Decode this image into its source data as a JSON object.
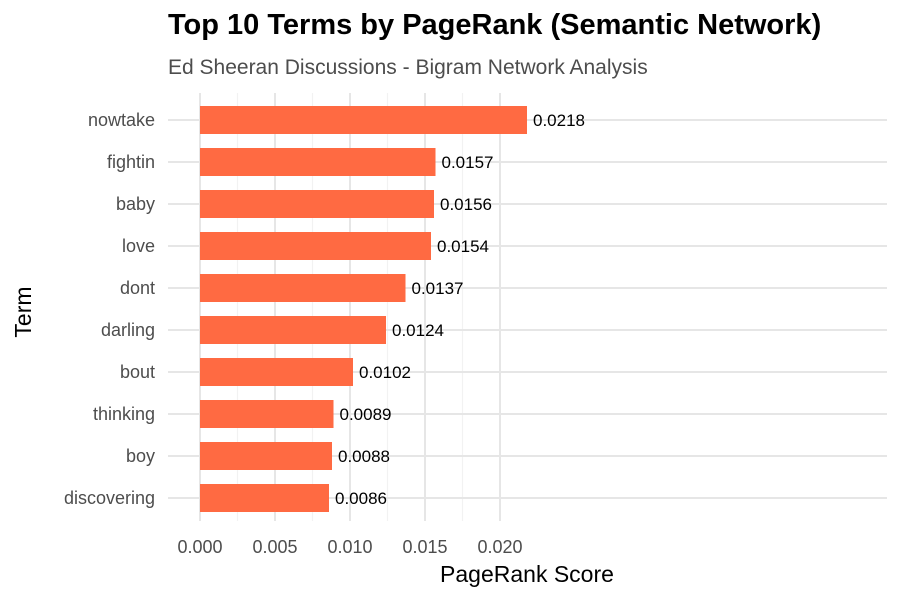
{
  "title": "Top 10 Terms by PageRank (Semantic Network)",
  "subtitle": "Ed Sheeran Discussions - Bigram Network Analysis",
  "chart_data": {
    "type": "bar",
    "orientation": "horizontal",
    "xlabel": "PageRank Score",
    "ylabel": "Term",
    "xlim": [
      0,
      0.0225
    ],
    "x_ticks": [
      "0.000",
      "0.005",
      "0.010",
      "0.015",
      "0.020"
    ],
    "categories": [
      "nowtake",
      "fightin",
      "baby",
      "love",
      "dont",
      "darling",
      "bout",
      "thinking",
      "boy",
      "discovering"
    ],
    "values": [
      0.0218,
      0.0157,
      0.0156,
      0.0154,
      0.0137,
      0.0124,
      0.0102,
      0.0089,
      0.0088,
      0.0086
    ],
    "data_labels": [
      "0.0218",
      "0.0157",
      "0.0156",
      "0.0154",
      "0.0137",
      "0.0124",
      "0.0102",
      "0.0089",
      "0.0088",
      "0.0086"
    ],
    "bar_color": "#FF6A42",
    "grid": true,
    "legend": "none"
  }
}
